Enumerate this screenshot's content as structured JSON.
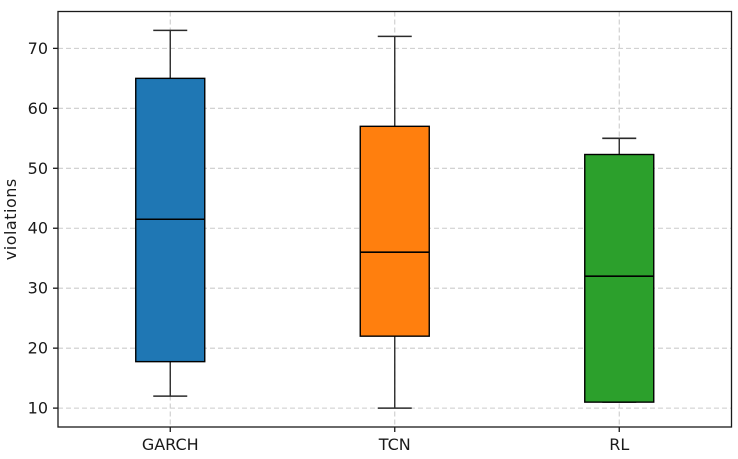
{
  "chart_data": {
    "type": "boxplot",
    "title": "",
    "xlabel": "",
    "ylabel": "violations",
    "categories": [
      "GARCH",
      "TCN",
      "RL"
    ],
    "series": [
      {
        "name": "GARCH",
        "whisker_low": 12,
        "q1": 17.75,
        "median": 41.5,
        "q3": 65,
        "whisker_high": 73,
        "color": "#1f77b4"
      },
      {
        "name": "TCN",
        "whisker_low": 10,
        "q1": 22,
        "median": 36,
        "q3": 57,
        "whisker_high": 72,
        "color": "#ff7f0e"
      },
      {
        "name": "RL",
        "whisker_low": 11,
        "q1": 11,
        "median": 32,
        "q3": 52.3,
        "whisker_high": 55,
        "color": "#2ca02c"
      }
    ],
    "yticks": [
      10,
      20,
      30,
      40,
      50,
      60,
      70
    ],
    "ylim": [
      6.85,
      76.15
    ],
    "grid": true,
    "legend": false,
    "grid_color": "#cccccc",
    "box_edge_color": "#000000",
    "whisker_color": "#2b2b2b",
    "spine_color": "#1a1a1a",
    "tick_label_color": "#1a1a1a",
    "plot_background": "#ffffff"
  }
}
